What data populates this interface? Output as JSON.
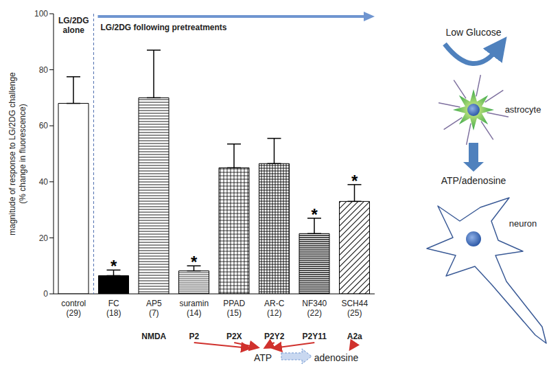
{
  "chart_data": {
    "type": "bar",
    "y_label": "magnitude of response to LG/2DG challenge (% change in fluorescence)",
    "categories": [
      "control",
      "FC",
      "AP5",
      "suramin",
      "PPAD",
      "AR-C",
      "NF340",
      "SCH44"
    ],
    "sample_sizes": [
      "(29)",
      "(18)",
      "(7)",
      "(14)",
      "(15)",
      "(12)",
      "(22)",
      "(25)"
    ],
    "receptors": [
      null,
      null,
      "NMDA",
      "P2",
      "P2X",
      "P2Y2",
      "P2Y11",
      "A2a"
    ],
    "values": [
      68,
      6.5,
      70,
      8.2,
      45,
      46.5,
      21.5,
      33
    ],
    "errors": [
      9.5,
      2,
      17,
      1.8,
      8.5,
      9,
      5.5,
      6
    ],
    "significant": [
      false,
      true,
      false,
      true,
      false,
      false,
      true,
      true
    ],
    "significance_label": "*",
    "ylim": [
      0,
      100
    ],
    "yticks": [
      0,
      20,
      40,
      60,
      80,
      100
    ],
    "grid": false,
    "annotations": {
      "alone": "LG/2DG alone",
      "pretreatments": "LG/2DG following pretreatments",
      "atp": "ATP",
      "adenosine": "adenosine"
    }
  },
  "diagram": {
    "stimulus": "Low Glucose",
    "cell": "astrocyte",
    "release": "ATP/adenosine",
    "target": "neuron"
  }
}
